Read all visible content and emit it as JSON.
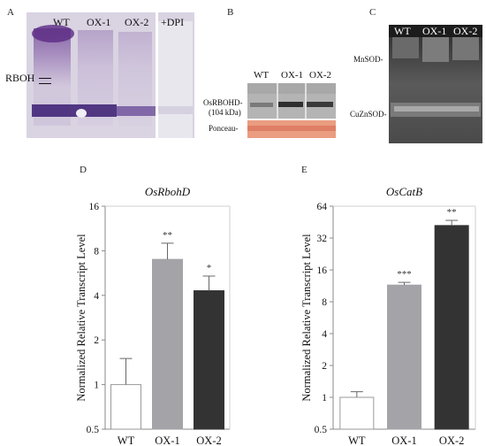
{
  "panels": {
    "A": {
      "letter": "A",
      "lanes": [
        "WT",
        "OX-1",
        "OX-2",
        "+DPI"
      ],
      "band_label": "RBOH"
    },
    "B": {
      "letter": "B",
      "lanes": [
        "WT",
        "OX-1",
        "OX-2"
      ],
      "protein_label": "OsRBOHD-",
      "protein_size": "(104 kDa)",
      "loading_label": "Ponceau-"
    },
    "C": {
      "letter": "C",
      "lanes": [
        "WT",
        "OX-1",
        "OX-2"
      ],
      "band_top": "MnSOD-",
      "band_bottom": "CuZnSOD-"
    },
    "D": {
      "letter": "D"
    },
    "E": {
      "letter": "E"
    }
  },
  "chart_data": [
    {
      "type": "bar",
      "title": "OsRbohD",
      "ylabel": "Normalized Relative Transcript Level",
      "yscale": "log2",
      "ylim": [
        0.5,
        16
      ],
      "yticks": [
        "0.5",
        "1",
        "2",
        "4",
        "8",
        "16"
      ],
      "categories": [
        "WT",
        "OX-1",
        "OX-2"
      ],
      "values": [
        1.0,
        7.0,
        4.3
      ],
      "error_upper": [
        1.5,
        9.0,
        5.4
      ],
      "significance": [
        "",
        "**",
        "*"
      ],
      "colors": [
        "#ffffff",
        "#a3a3a8",
        "#333333"
      ]
    },
    {
      "type": "bar",
      "title": "OsCatB",
      "ylabel": "Normalized Relative Transcript Level",
      "yscale": "log2",
      "ylim": [
        0.5,
        64
      ],
      "yticks": [
        "0.5",
        "1",
        "2",
        "4",
        "8",
        "16",
        "32",
        "64"
      ],
      "categories": [
        "WT",
        "OX-1",
        "OX-2"
      ],
      "values": [
        1.0,
        11.5,
        42
      ],
      "error_upper": [
        1.13,
        12.2,
        47
      ],
      "significance": [
        "",
        "***",
        "**"
      ],
      "colors": [
        "#ffffff",
        "#a3a3a8",
        "#333333"
      ]
    }
  ]
}
